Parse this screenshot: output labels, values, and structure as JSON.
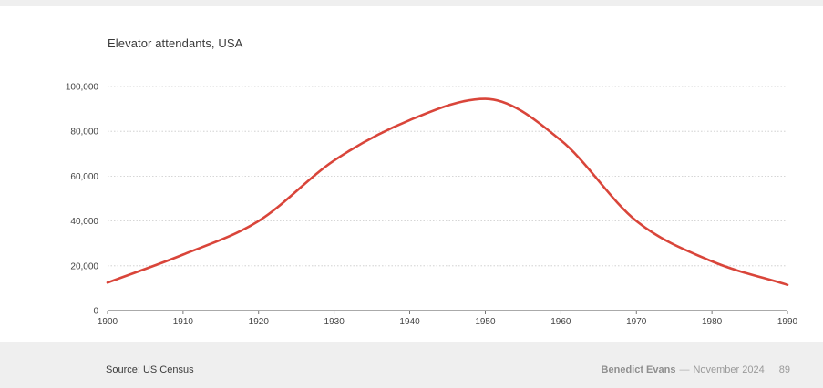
{
  "chart_data": {
    "type": "line",
    "title": "Elevator attendants, USA",
    "x": [
      1900,
      1910,
      1920,
      1930,
      1940,
      1950,
      1960,
      1970,
      1980,
      1990
    ],
    "series": [
      {
        "values": [
          12500,
          25000,
          40000,
          67000,
          85000,
          94500,
          76000,
          40000,
          22000,
          11500
        ],
        "color": "#d9453a"
      }
    ],
    "xlim": [
      1900,
      1990
    ],
    "ylim": [
      0,
      100000
    ],
    "xticks": [
      1900,
      1910,
      1920,
      1930,
      1940,
      1950,
      1960,
      1970,
      1980,
      1990
    ],
    "yticks": [
      0,
      20000,
      40000,
      60000,
      80000,
      100000
    ],
    "ytick_labels": [
      "0",
      "20,000",
      "40,000",
      "60,000",
      "80,000",
      "100,000"
    ],
    "grid": "horizontal dotted",
    "xlabel": "",
    "ylabel": ""
  },
  "footer": {
    "source": "Source: US Census",
    "author": "Benedict Evans",
    "separator": "—",
    "date": "November 2024",
    "page_number": "89"
  }
}
